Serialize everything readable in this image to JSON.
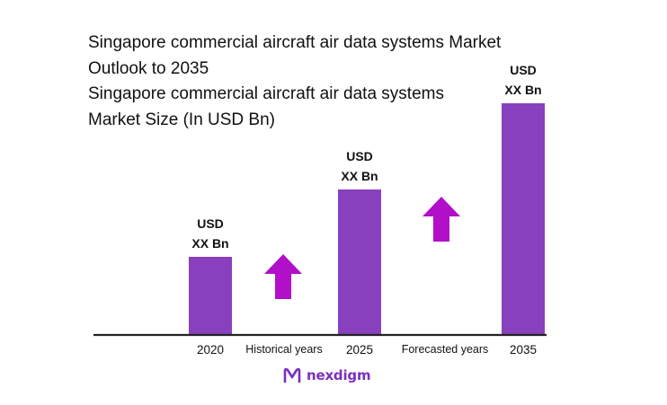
{
  "chart_data": {
    "type": "bar",
    "title": "Singapore commercial aircraft air data systems Market Outlook to 2035",
    "subtitle": "Singapore commercial aircraft air data systems Market Size (In USD Bn)",
    "categories": [
      "2020",
      "2025",
      "2035"
    ],
    "values": [
      2.9,
      5.4,
      8.6
    ],
    "value_labels": [
      {
        "line1": "USD",
        "line2": "XX Bn"
      },
      {
        "line1": "USD",
        "line2": "XX Bn"
      },
      {
        "line1": "USD",
        "line2": "XX Bn"
      }
    ],
    "period_labels": [
      "Historical years",
      "Forecasted years"
    ],
    "ylim": [
      0,
      10
    ],
    "grid": false,
    "colors": {
      "bar": "#8840be",
      "arrow": "#b10fc8",
      "axis": "#222222",
      "text": "#111111"
    }
  },
  "brand": {
    "name": "nexdigm",
    "color": "#7b2fbf"
  }
}
